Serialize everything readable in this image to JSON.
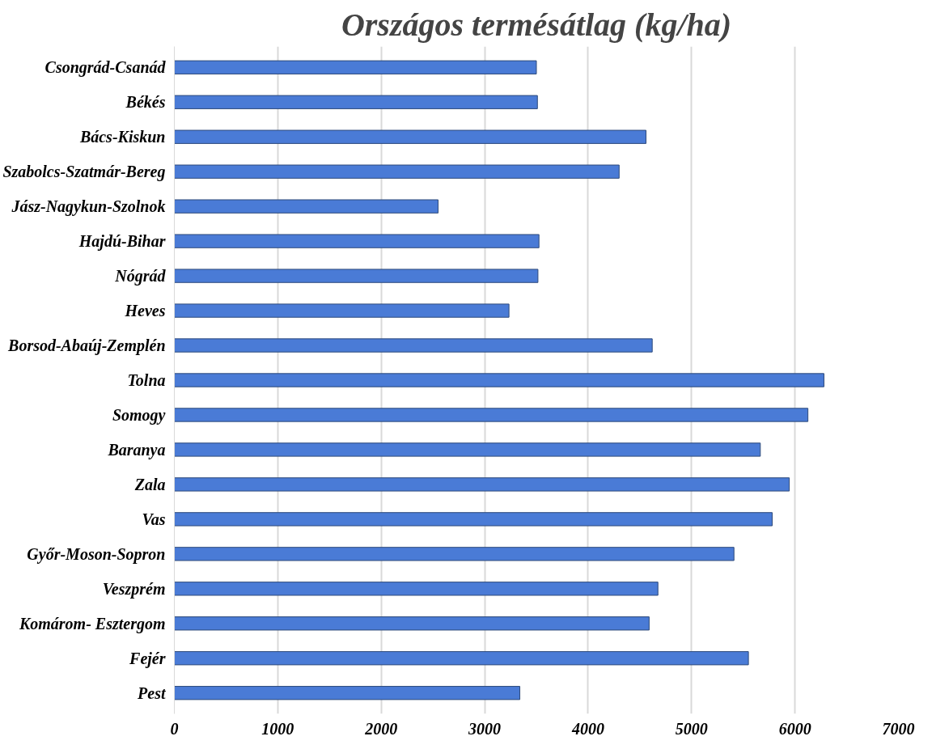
{
  "chart_data": {
    "type": "bar",
    "orientation": "horizontal",
    "title": "Országos termésátlag (kg/ha)",
    "categories": [
      "Csongrád-Csanád",
      "Békés",
      "Bács-Kiskun",
      "Szabolcs-Szatmár-Bereg",
      "Jász-Nagykun-Szolnok",
      "Hajdú-Bihar",
      "Nógrád",
      "Heves",
      "Borsod-Abaúj-Zemplén",
      "Tolna",
      "Somogy",
      "Baranya",
      "Zala",
      "Vas",
      "Győr-Moson-Sopron",
      "Veszprém",
      "Komárom- Esztergom",
      "Fejér",
      "Pest"
    ],
    "values": [
      3500,
      3510,
      4560,
      4300,
      2550,
      3525,
      3515,
      3235,
      4620,
      6280,
      6125,
      5665,
      5945,
      5780,
      5410,
      4675,
      4590,
      5550,
      3340
    ],
    "color": "#4a7bd6",
    "xlim": [
      0,
      7000
    ],
    "xticks": [
      0,
      1000,
      2000,
      3000,
      4000,
      5000,
      6000,
      7000
    ],
    "grid": "x"
  }
}
